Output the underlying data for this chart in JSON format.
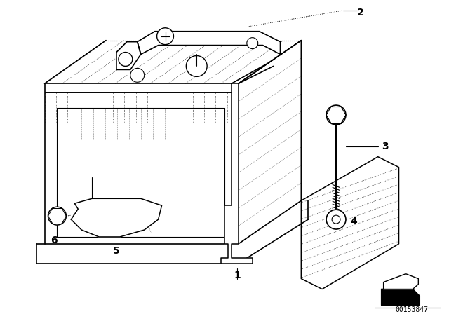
{
  "background_color": "#ffffff",
  "line_color": "#000000",
  "diagram_id": "00153847",
  "fig_width": 6.4,
  "fig_height": 4.48,
  "dpi": 100,
  "label_1": "1",
  "label_2": "2",
  "label_3": "3",
  "label_4": "4",
  "label_5": "5",
  "label_6": "6"
}
